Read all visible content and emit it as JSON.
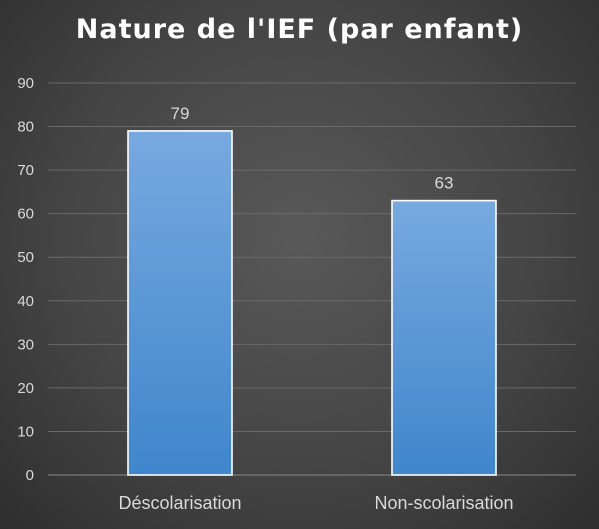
{
  "chart_data": {
    "type": "bar",
    "title": "Nature de l'IEF (par enfant)",
    "categories": [
      "Déscolarisation",
      "Non-scolarisation"
    ],
    "values": [
      79,
      63
    ],
    "data_labels": [
      "79",
      "63"
    ],
    "ylim": [
      0,
      90
    ],
    "yticks": [
      0,
      10,
      20,
      30,
      40,
      50,
      60,
      70,
      80,
      90
    ],
    "xlabel": "",
    "ylabel": "",
    "grid": true,
    "legend": "none",
    "colors": {
      "bar_top": "#78a9e0",
      "bar_bottom": "#3f86cc",
      "bar_outline": "#ffffff",
      "grid": "#6a6a6a",
      "text": "#d9d9d9",
      "title": "#ffffff"
    }
  }
}
